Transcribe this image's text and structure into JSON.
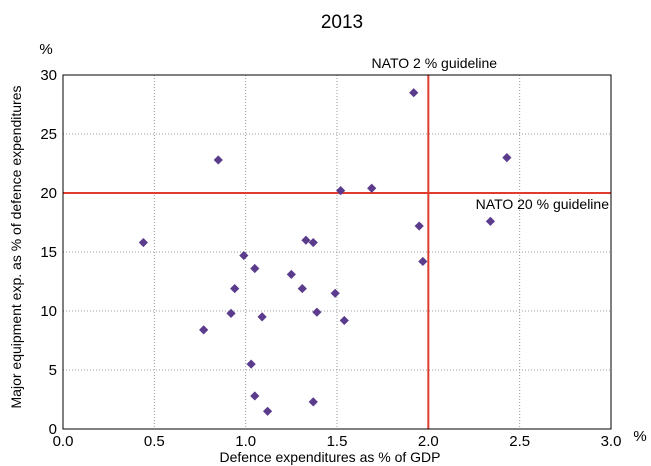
{
  "chart_data": {
    "type": "scatter",
    "title": "2013",
    "xlabel": "Defence expenditures as % of GDP",
    "ylabel": "Major equipment exp. as % of defence expenditures",
    "x_unit": "%",
    "y_unit": "%",
    "xlim": [
      0,
      3
    ],
    "ylim": [
      0,
      30
    ],
    "xticks": [
      "0.0",
      "0.5",
      "1.0",
      "1.5",
      "2.0",
      "2.5",
      "3.0"
    ],
    "yticks": [
      "0",
      "5",
      "10",
      "15",
      "20",
      "25",
      "30"
    ],
    "grid": true,
    "grid_style": "dotted",
    "marker": "diamond",
    "marker_color": "#5b3b8c",
    "reference_color": "#e03c2c",
    "reference_lines": [
      {
        "axis": "x",
        "value": 2.0,
        "label": "NATO 2 % guideline"
      },
      {
        "axis": "y",
        "value": 20,
        "label": "NATO 20 % guideline"
      }
    ],
    "points": [
      {
        "x": 0.44,
        "y": 15.8
      },
      {
        "x": 0.77,
        "y": 8.4
      },
      {
        "x": 0.85,
        "y": 22.8
      },
      {
        "x": 0.92,
        "y": 9.8
      },
      {
        "x": 0.94,
        "y": 11.9
      },
      {
        "x": 0.99,
        "y": 14.7
      },
      {
        "x": 1.03,
        "y": 5.5
      },
      {
        "x": 1.05,
        "y": 13.6
      },
      {
        "x": 1.05,
        "y": 2.8
      },
      {
        "x": 1.09,
        "y": 9.5
      },
      {
        "x": 1.12,
        "y": 1.5
      },
      {
        "x": 1.25,
        "y": 13.1
      },
      {
        "x": 1.31,
        "y": 11.9
      },
      {
        "x": 1.33,
        "y": 16.0
      },
      {
        "x": 1.37,
        "y": 15.8
      },
      {
        "x": 1.37,
        "y": 2.3
      },
      {
        "x": 1.39,
        "y": 9.9
      },
      {
        "x": 1.49,
        "y": 11.5
      },
      {
        "x": 1.52,
        "y": 20.2
      },
      {
        "x": 1.54,
        "y": 9.2
      },
      {
        "x": 1.69,
        "y": 20.4
      },
      {
        "x": 1.92,
        "y": 28.5
      },
      {
        "x": 1.95,
        "y": 17.2
      },
      {
        "x": 1.97,
        "y": 14.2
      },
      {
        "x": 2.34,
        "y": 17.6
      },
      {
        "x": 2.43,
        "y": 23.0
      }
    ]
  }
}
